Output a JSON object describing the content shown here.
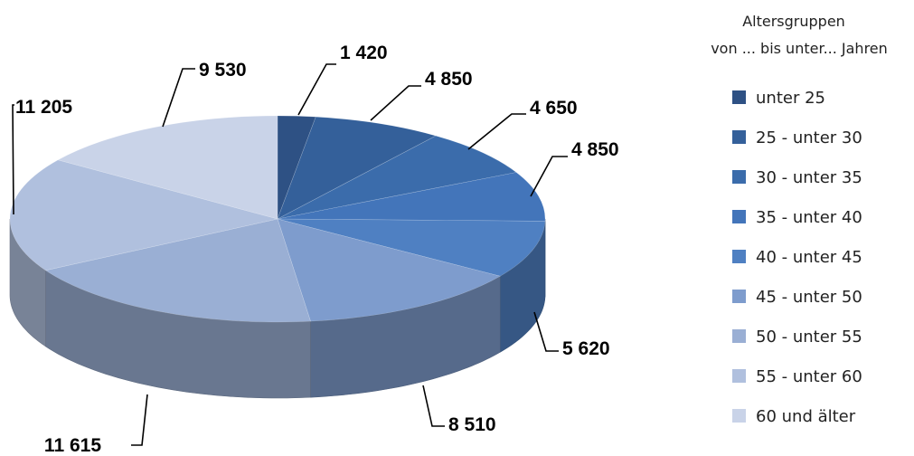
{
  "chart_data": {
    "type": "pie",
    "style": "3d",
    "legend": {
      "title_line1": "Altersgruppen",
      "title_line2": "von ... bis unter... Jahren",
      "placement": "right"
    },
    "slices": [
      {
        "label": "unter 25",
        "value": 1420,
        "display": "1 420",
        "color": "#2e5184"
      },
      {
        "label": "25  -  unter 30",
        "value": 4850,
        "display": "4 850",
        "color": "#34609a"
      },
      {
        "label": "30  -  unter 35",
        "value": 4650,
        "display": "4 650",
        "color": "#3b6cab"
      },
      {
        "label": "35  -  unter 40",
        "value": 4850,
        "display": "4 850",
        "color": "#4375ba"
      },
      {
        "label": "40  -  unter 45",
        "value": 5620,
        "display": "5 620",
        "color": "#4f80c2"
      },
      {
        "label": "45  -  unter 50",
        "value": 8510,
        "display": "8 510",
        "color": "#7e9ccd"
      },
      {
        "label": "50  -  unter 55",
        "value": 11615,
        "display": "11 615",
        "color": "#9aafd4"
      },
      {
        "label": "55  -  unter 60",
        "value": 11205,
        "display": "11 205",
        "color": "#b0c0de"
      },
      {
        "label": "60  und älter",
        "value": 9530,
        "display": "9 530",
        "color": "#c9d3e8"
      }
    ]
  }
}
